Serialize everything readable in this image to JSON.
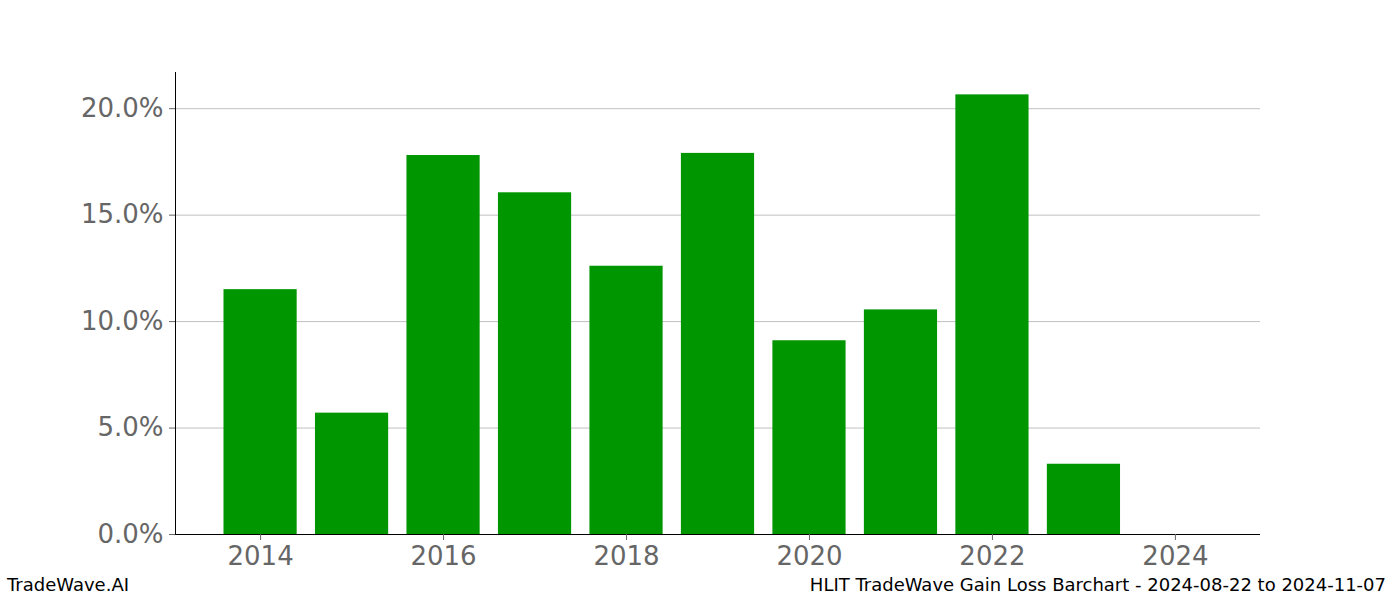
{
  "chart_data": {
    "type": "bar",
    "title": "HLIT TradeWave Gain Loss Barchart - 2024-08-22 to 2024-11-07",
    "caption": "TradeWave.AI",
    "x": [
      2014,
      2015,
      2016,
      2017,
      2018,
      2019,
      2020,
      2021,
      2022,
      2023
    ],
    "values": [
      11.5,
      5.7,
      17.8,
      16.05,
      12.6,
      17.9,
      9.1,
      10.55,
      20.65,
      3.3
    ],
    "color": "#009600",
    "xlim": [
      2013.07,
      2024.93
    ],
    "xticks": [
      2014,
      2016,
      2018,
      2020,
      2022,
      2024
    ],
    "ylim": [
      0,
      21.7
    ],
    "yticks": [
      {
        "value": 0,
        "label": "0.0%"
      },
      {
        "value": 5,
        "label": "5.0%"
      },
      {
        "value": 10,
        "label": "10.0%"
      },
      {
        "value": 15,
        "label": "15.0%"
      },
      {
        "value": 20,
        "label": "20.0%"
      }
    ],
    "grid": true
  }
}
